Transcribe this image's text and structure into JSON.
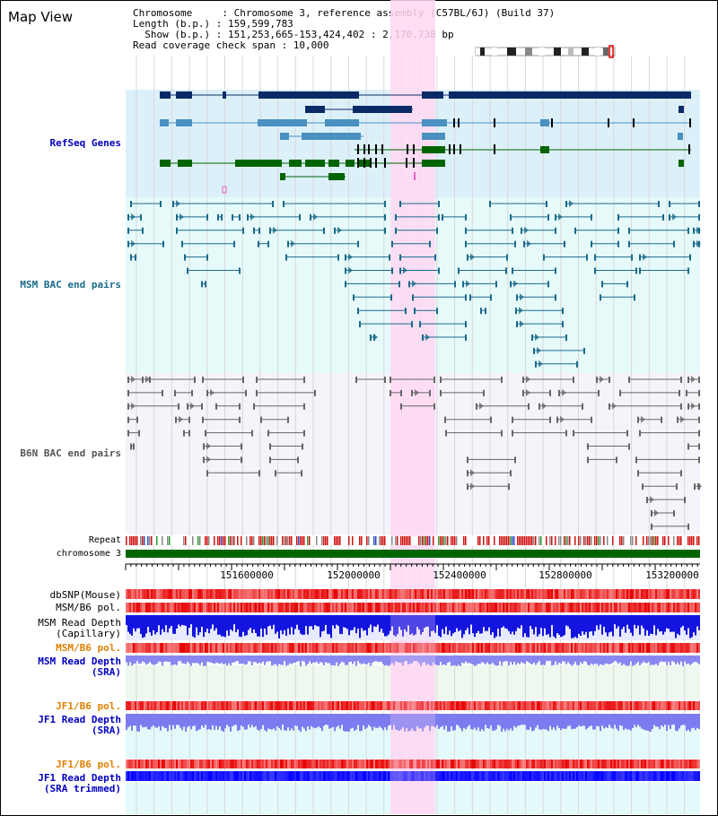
{
  "page_title": "Map View",
  "header": {
    "chromosome_line": "Chromosome     : Chromosome 3, reference assembly (C57BL/6J) (Build 37)",
    "length_line": "Length (b.p.) : 159,599,783",
    "show_line": "  Show (b.p.) : 151,253,665-153,424,402 : 2,170,738 bp",
    "coverage_line": "Read coverage check span : 10,000"
  },
  "tracks": {
    "refseq": "RefSeq Genes",
    "msm_bac": "MSM BAC end pairs",
    "b6n_bac": "B6N BAC end pairs",
    "repeat": "Repeat",
    "chromosome": "chromosome 3",
    "dbsnp": "dbSNP(Mouse)",
    "msm_b6_pol": "MSM/B6 pol.",
    "msm_depth_cap_1": "MSM Read Depth",
    "msm_depth_cap_2": "(Capillary)",
    "msm_b6_pol_2": "MSM/B6 pol.",
    "msm_depth_sra_1": "MSM Read Depth",
    "msm_depth_sra_2": "(SRA)",
    "jf1_b6_pol": "JF1/B6 pol.",
    "jf1_depth_sra_1": "JF1 Read Depth",
    "jf1_depth_sra_2": "(SRA)",
    "jf1_b6_pol_2": "JF1/B6 pol.",
    "jf1_depth_trim_1": "JF1 Read Depth",
    "jf1_depth_trim_2": "(SRA trimmed)"
  },
  "axis": {
    "ticks": [
      "151600000",
      "152000000",
      "152400000",
      "152800000",
      "153200000"
    ]
  },
  "colors": {
    "refseq_bg": "#dcf0fa",
    "msm_bg": "#e6fafa",
    "b6n_bg": "#f4f4fa",
    "highlight": "#ffd8f2",
    "gene_dark": "#0a2a66",
    "gene_mid": "#4a90c0",
    "gene_green": "#006400",
    "msm_line": "#1a6a8a",
    "b6n_line": "#666666",
    "label_blue": "#0000c0",
    "label_teal": "#1a6a8a",
    "label_gray": "#555555",
    "label_orange": "#e08000"
  }
}
